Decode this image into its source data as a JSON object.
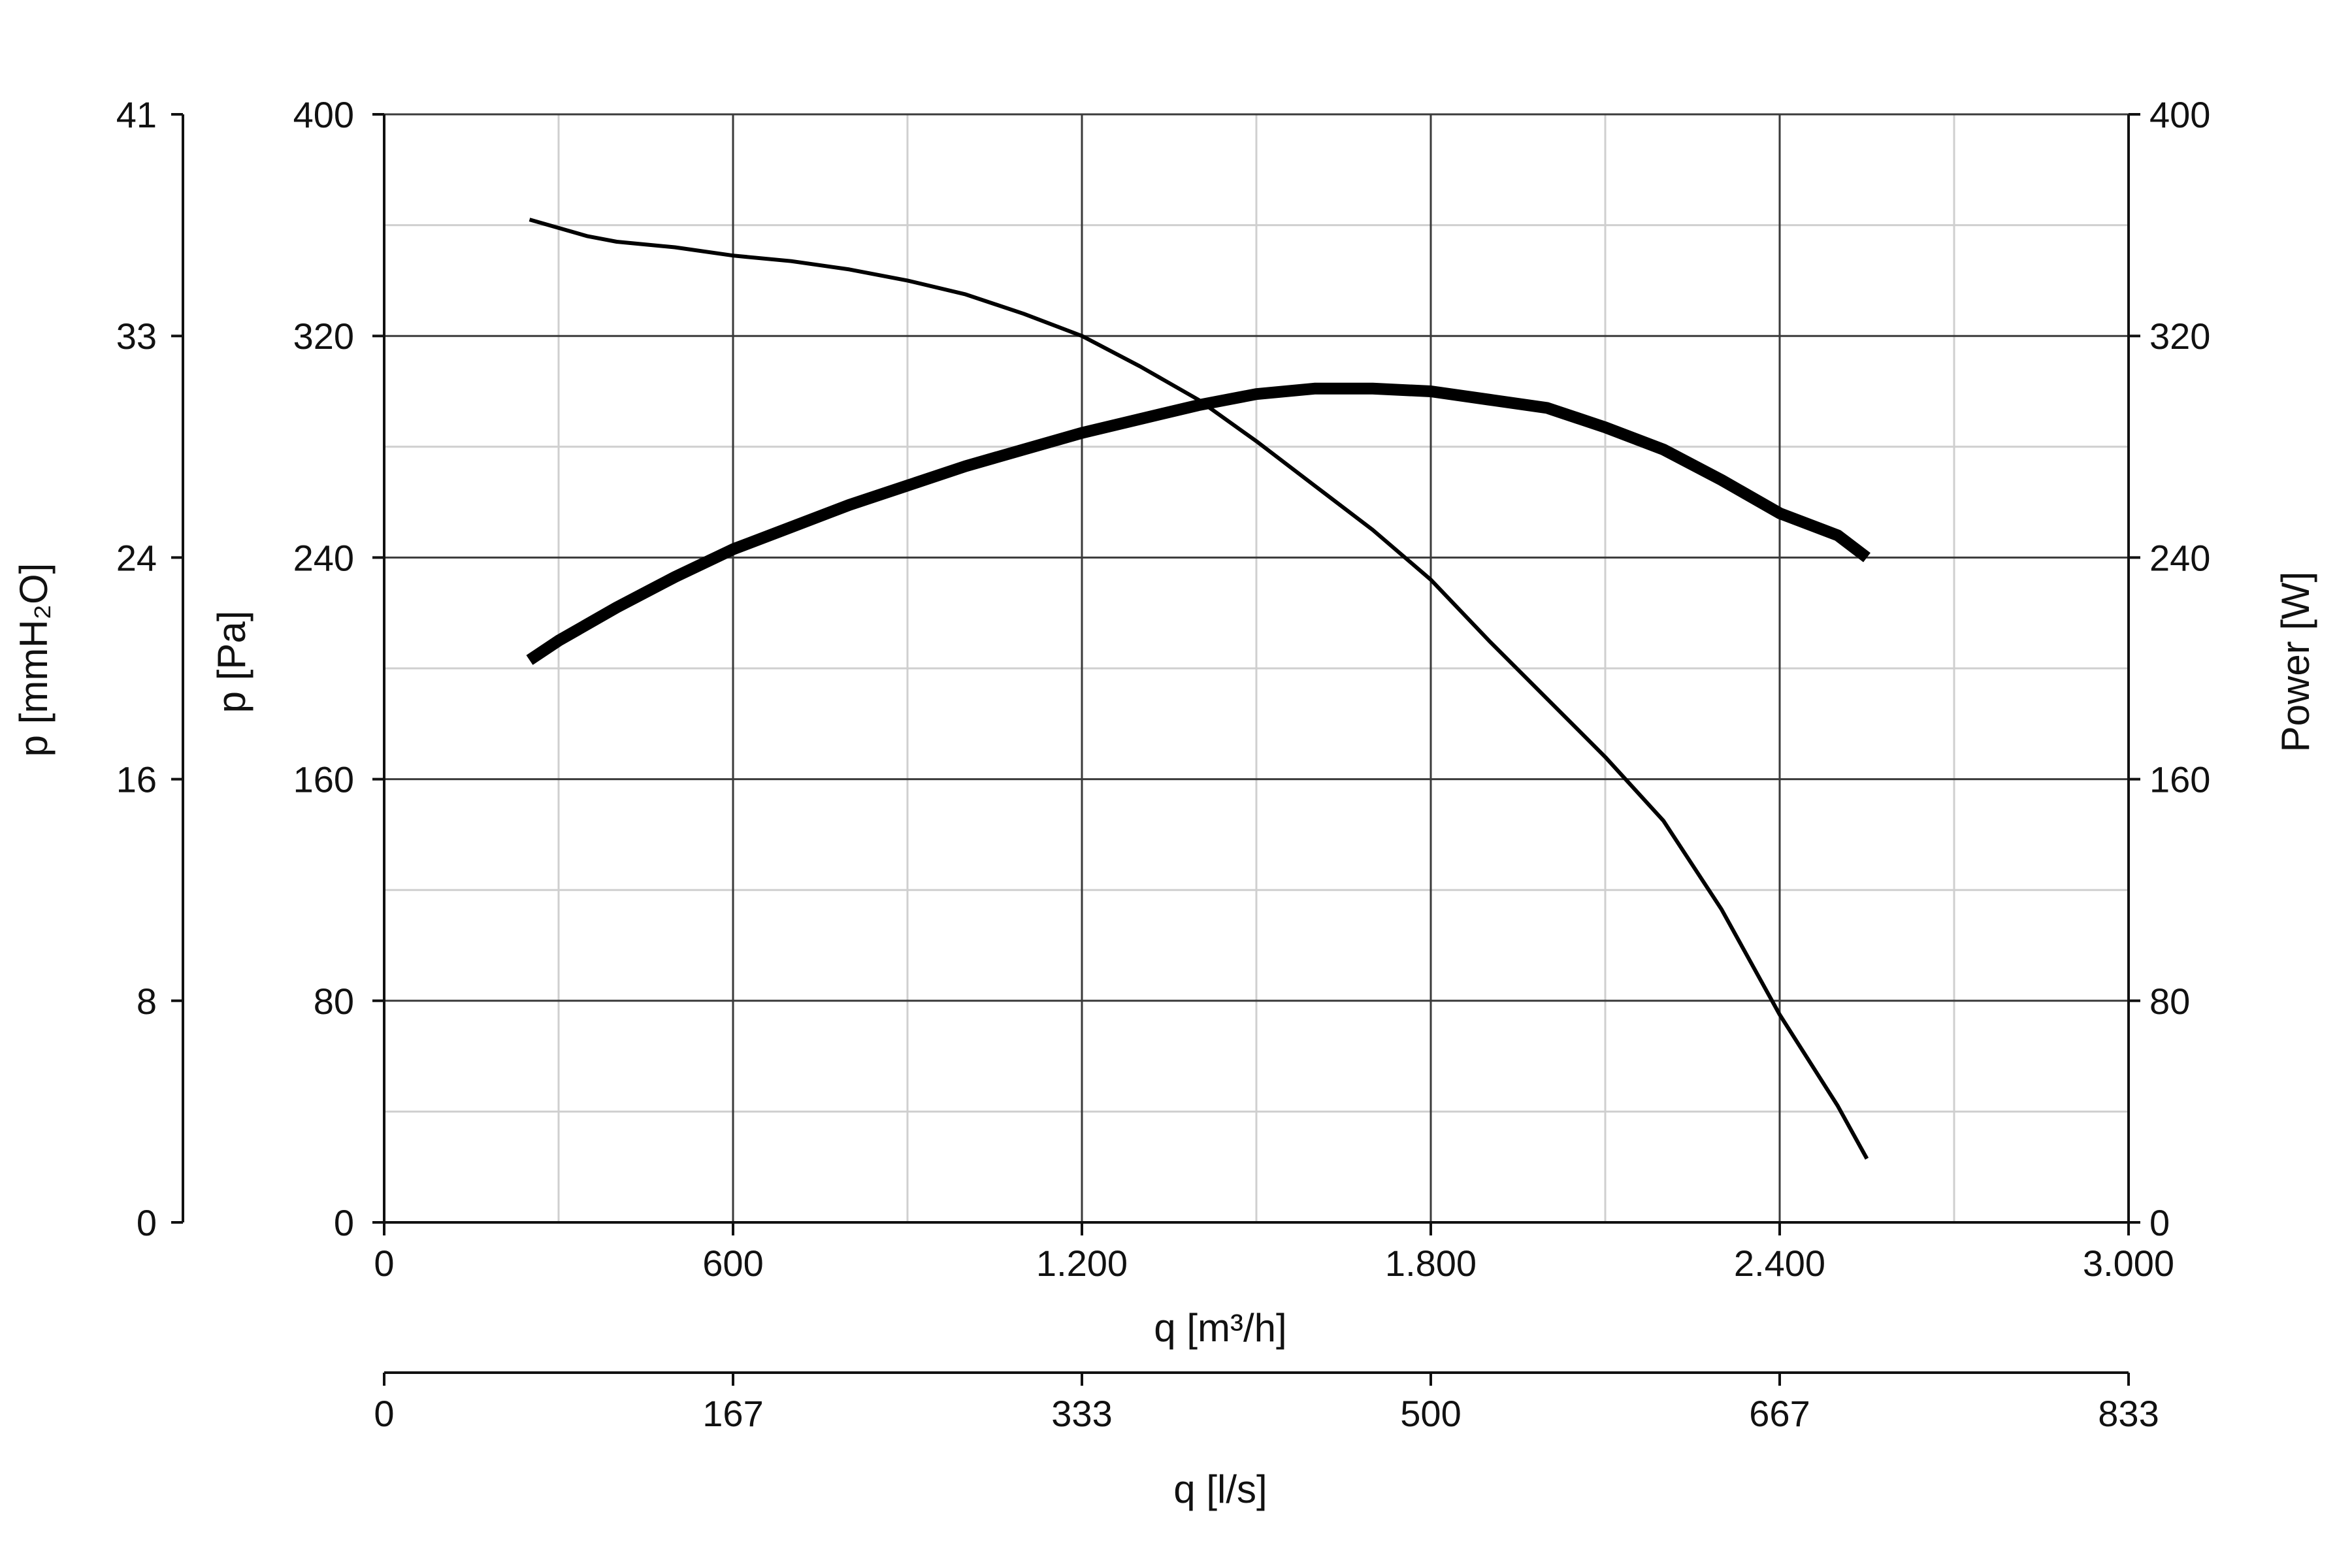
{
  "chart_data": {
    "type": "line",
    "x": {
      "label": "q [m³/h]",
      "range": [
        0,
        3000
      ],
      "ticks": [
        0,
        600,
        1200,
        1800,
        2400,
        3000
      ],
      "tick_labels": [
        "0",
        "600",
        "1.200",
        "1.800",
        "2.400",
        "3.000"
      ],
      "minor_gridlines": [
        300,
        900,
        1500,
        2100,
        2700
      ]
    },
    "x_secondary": {
      "label": "q [l/s]",
      "range": [
        0,
        833
      ],
      "tick_labels": [
        "0",
        "167",
        "333",
        "500",
        "667",
        "833"
      ]
    },
    "y_left_outer": {
      "label": "p [mmH₂O]",
      "tick_labels": [
        "0",
        "8",
        "16",
        "24",
        "33",
        "41"
      ]
    },
    "y_left": {
      "label": "p [Pa]",
      "range": [
        0,
        400
      ],
      "ticks": [
        0,
        80,
        160,
        240,
        320,
        400
      ],
      "tick_labels": [
        "0",
        "80",
        "160",
        "240",
        "320",
        "400"
      ],
      "minor_gridlines": [
        40,
        120,
        200,
        280,
        360
      ]
    },
    "y_right": {
      "label": "Power [W]",
      "range": [
        0,
        400
      ],
      "tick_labels": [
        "0",
        "80",
        "160",
        "240",
        "320",
        "400"
      ]
    },
    "grid": true,
    "series": [
      {
        "axis": "left",
        "stroke": "thin",
        "points": [
          [
            250,
            362
          ],
          [
            350,
            356
          ],
          [
            400,
            354
          ],
          [
            500,
            352
          ],
          [
            600,
            349
          ],
          [
            700,
            347
          ],
          [
            800,
            344
          ],
          [
            900,
            340
          ],
          [
            1000,
            335
          ],
          [
            1100,
            328
          ],
          [
            1200,
            320
          ],
          [
            1300,
            309
          ],
          [
            1400,
            297
          ],
          [
            1500,
            282
          ],
          [
            1600,
            266
          ],
          [
            1700,
            250
          ],
          [
            1800,
            232
          ],
          [
            1900,
            210
          ],
          [
            2000,
            189
          ],
          [
            2100,
            168
          ],
          [
            2200,
            145
          ],
          [
            2300,
            113
          ],
          [
            2400,
            75
          ],
          [
            2500,
            42
          ],
          [
            2550,
            23
          ]
        ]
      },
      {
        "axis": "right",
        "stroke": "thick",
        "points": [
          [
            250,
            203
          ],
          [
            300,
            210
          ],
          [
            400,
            222
          ],
          [
            500,
            233
          ],
          [
            600,
            243
          ],
          [
            700,
            251
          ],
          [
            800,
            259
          ],
          [
            900,
            266
          ],
          [
            1000,
            273
          ],
          [
            1100,
            279
          ],
          [
            1200,
            285
          ],
          [
            1300,
            290
          ],
          [
            1400,
            295
          ],
          [
            1500,
            299
          ],
          [
            1600,
            301
          ],
          [
            1700,
            301
          ],
          [
            1800,
            300
          ],
          [
            1900,
            297
          ],
          [
            2000,
            294
          ],
          [
            2100,
            287
          ],
          [
            2200,
            279
          ],
          [
            2300,
            268
          ],
          [
            2400,
            256
          ],
          [
            2500,
            248
          ],
          [
            2550,
            240
          ]
        ]
      }
    ]
  },
  "colors": {
    "major_grid": "#3a3a3a",
    "minor_grid": "#cfcfcf",
    "axis": "#111111",
    "curve": "#000000"
  }
}
